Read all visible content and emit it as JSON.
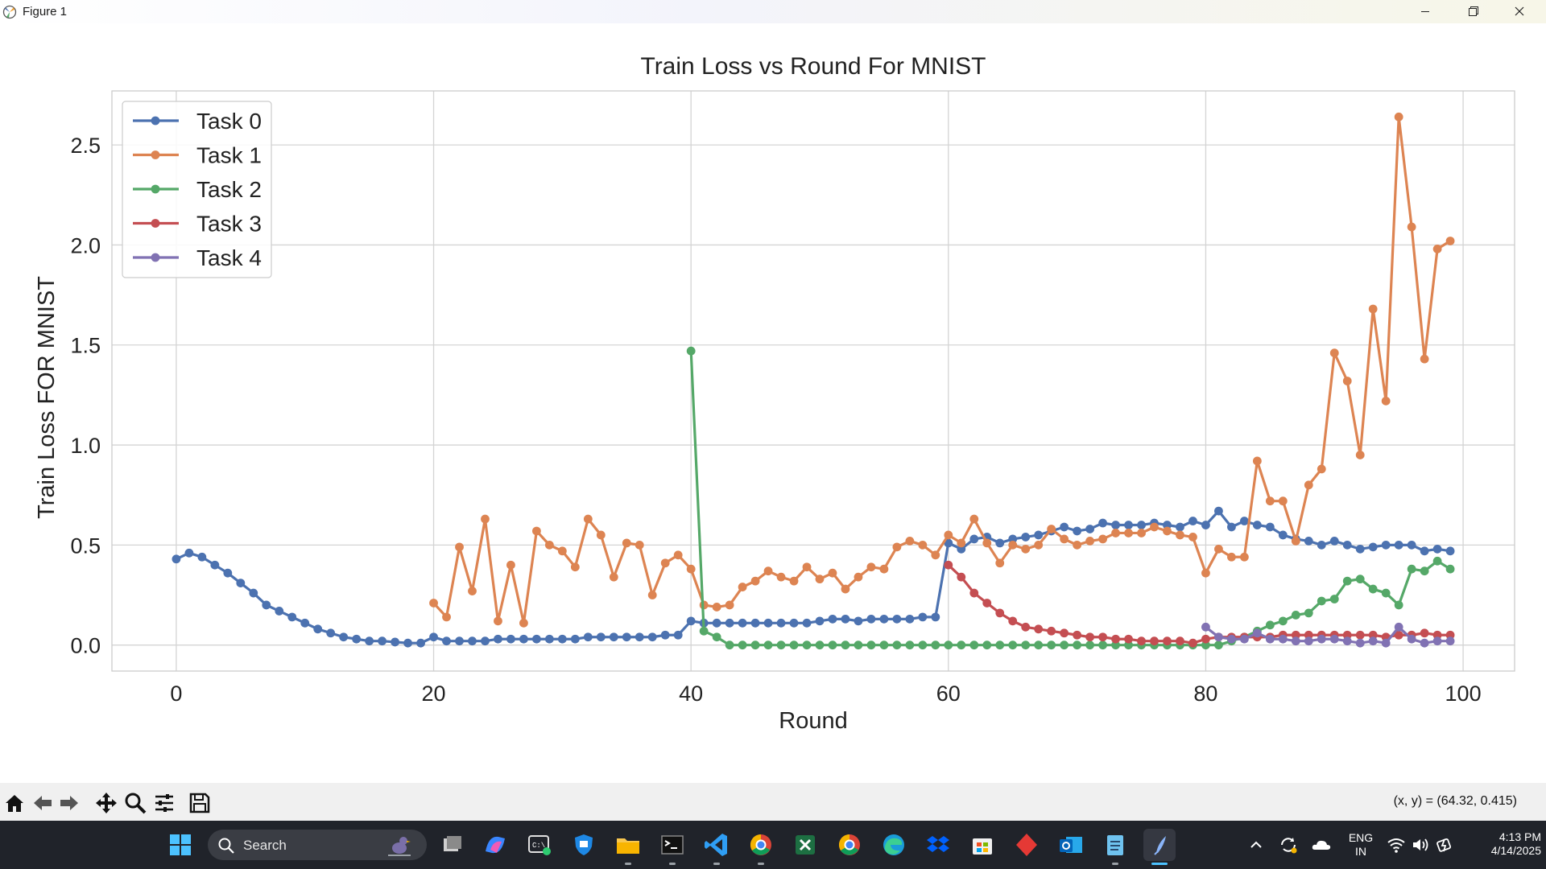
{
  "window": {
    "title": "Figure 1"
  },
  "toolbar": {
    "buttons": [
      "home-icon",
      "back-icon",
      "forward-icon",
      "pan-icon",
      "zoom-icon",
      "configure-subplots-icon",
      "save-icon"
    ],
    "coordinates": "(x, y) = (64.32, 0.415)"
  },
  "taskbar": {
    "search_placeholder": "Search",
    "language": "ENG",
    "region": "IN",
    "time": "4:13 PM",
    "date": "4/14/2025",
    "apps": [
      "windows-start-icon",
      "task-view-icon",
      "copilot-icon",
      "terminal-icon",
      "defender-icon",
      "file-explorer-icon",
      "cmd-icon",
      "vscode-icon",
      "chrome-icon",
      "excel-icon",
      "chrome-profile-icon",
      "edge-icon",
      "dropbox-icon",
      "microsoft-store-icon",
      "red-app-icon",
      "outlook-icon",
      "notepad-icon",
      "python-figure-icon"
    ]
  },
  "colors": {
    "task0": "#4c72b0",
    "task1": "#dd8452",
    "task2": "#55a868",
    "task3": "#c44e52",
    "task4": "#8172b3"
  },
  "chart_data": {
    "type": "line",
    "title": "Train Loss vs Round For MNIST",
    "xlabel": "Round",
    "ylabel": "Train Loss FOR MNIST",
    "xlim": [
      -5,
      104
    ],
    "ylim": [
      -0.13,
      2.77
    ],
    "xticks": [
      0,
      20,
      40,
      60,
      80,
      100
    ],
    "yticks": [
      0.0,
      0.5,
      1.0,
      1.5,
      2.0,
      2.5
    ],
    "xtick_labels": [
      "0",
      "20",
      "40",
      "60",
      "80",
      "100"
    ],
    "ytick_labels": [
      "0.0",
      "0.5",
      "1.0",
      "1.5",
      "2.0",
      "2.5"
    ],
    "grid": true,
    "legend_position": "top-left",
    "series": [
      {
        "name": "Task 0",
        "x_start": 0,
        "values": [
          0.43,
          0.46,
          0.44,
          0.4,
          0.36,
          0.31,
          0.26,
          0.2,
          0.17,
          0.14,
          0.11,
          0.08,
          0.06,
          0.04,
          0.03,
          0.02,
          0.02,
          0.015,
          0.01,
          0.01,
          0.04,
          0.02,
          0.02,
          0.02,
          0.02,
          0.03,
          0.03,
          0.03,
          0.03,
          0.03,
          0.03,
          0.03,
          0.04,
          0.04,
          0.04,
          0.04,
          0.04,
          0.04,
          0.05,
          0.05,
          0.12,
          0.11,
          0.11,
          0.11,
          0.11,
          0.11,
          0.11,
          0.11,
          0.11,
          0.11,
          0.12,
          0.13,
          0.13,
          0.12,
          0.13,
          0.13,
          0.13,
          0.13,
          0.14,
          0.14,
          0.51,
          0.48,
          0.53,
          0.54,
          0.51,
          0.53,
          0.54,
          0.55,
          0.57,
          0.59,
          0.57,
          0.58,
          0.61,
          0.6,
          0.6,
          0.6,
          0.61,
          0.6,
          0.59,
          0.62,
          0.6,
          0.67,
          0.59,
          0.62,
          0.6,
          0.59,
          0.55,
          0.53,
          0.52,
          0.5,
          0.52,
          0.5,
          0.48,
          0.49,
          0.5,
          0.5,
          0.5,
          0.47,
          0.48,
          0.47
        ]
      },
      {
        "name": "Task 1",
        "x_start": 20,
        "values": [
          0.21,
          0.14,
          0.49,
          0.27,
          0.63,
          0.12,
          0.4,
          0.11,
          0.57,
          0.5,
          0.47,
          0.39,
          0.63,
          0.55,
          0.34,
          0.51,
          0.5,
          0.25,
          0.41,
          0.45,
          0.38,
          0.2,
          0.19,
          0.2,
          0.29,
          0.32,
          0.37,
          0.34,
          0.32,
          0.39,
          0.33,
          0.36,
          0.28,
          0.34,
          0.39,
          0.38,
          0.49,
          0.52,
          0.5,
          0.45,
          0.55,
          0.51,
          0.63,
          0.51,
          0.41,
          0.5,
          0.48,
          0.5,
          0.58,
          0.53,
          0.5,
          0.52,
          0.53,
          0.56,
          0.56,
          0.56,
          0.59,
          0.57,
          0.55,
          0.54,
          0.36,
          0.48,
          0.44,
          0.44,
          0.92,
          0.72,
          0.72,
          0.52,
          0.8,
          0.88,
          1.46,
          1.32,
          0.95,
          1.68,
          1.22,
          2.64,
          2.09,
          1.43,
          1.98,
          2.02
        ]
      },
      {
        "name": "Task 2",
        "x_start": 40,
        "values": [
          1.47,
          0.07,
          0.04,
          0.0,
          0.0,
          0.0,
          0.0,
          0.0,
          0.0,
          0.0,
          0.0,
          0.0,
          0.0,
          0.0,
          0.0,
          0.0,
          0.0,
          0.0,
          0.0,
          0.0,
          0.0,
          0.0,
          0.0,
          0.0,
          0.0,
          0.0,
          0.0,
          0.0,
          0.0,
          0.0,
          0.0,
          0.0,
          0.0,
          0.0,
          0.0,
          0.0,
          0.0,
          0.0,
          0.0,
          0.0,
          0.0,
          0.0,
          0.02,
          0.04,
          0.07,
          0.1,
          0.12,
          0.15,
          0.16,
          0.22,
          0.23,
          0.32,
          0.33,
          0.28,
          0.26,
          0.2,
          0.38,
          0.37,
          0.42,
          0.38
        ]
      },
      {
        "name": "Task 3",
        "x_start": 60,
        "values": [
          0.4,
          0.34,
          0.26,
          0.21,
          0.16,
          0.12,
          0.09,
          0.08,
          0.07,
          0.06,
          0.05,
          0.04,
          0.04,
          0.03,
          0.03,
          0.02,
          0.02,
          0.02,
          0.02,
          0.01,
          0.03,
          0.04,
          0.04,
          0.04,
          0.04,
          0.04,
          0.05,
          0.05,
          0.05,
          0.05,
          0.05,
          0.05,
          0.05,
          0.05,
          0.04,
          0.05,
          0.05,
          0.06,
          0.05,
          0.05
        ]
      },
      {
        "name": "Task 4",
        "x_start": 80,
        "values": [
          0.09,
          0.04,
          0.03,
          0.03,
          0.06,
          0.03,
          0.03,
          0.02,
          0.02,
          0.03,
          0.03,
          0.02,
          0.01,
          0.02,
          0.01,
          0.09,
          0.03,
          0.01,
          0.02,
          0.02
        ]
      }
    ]
  }
}
